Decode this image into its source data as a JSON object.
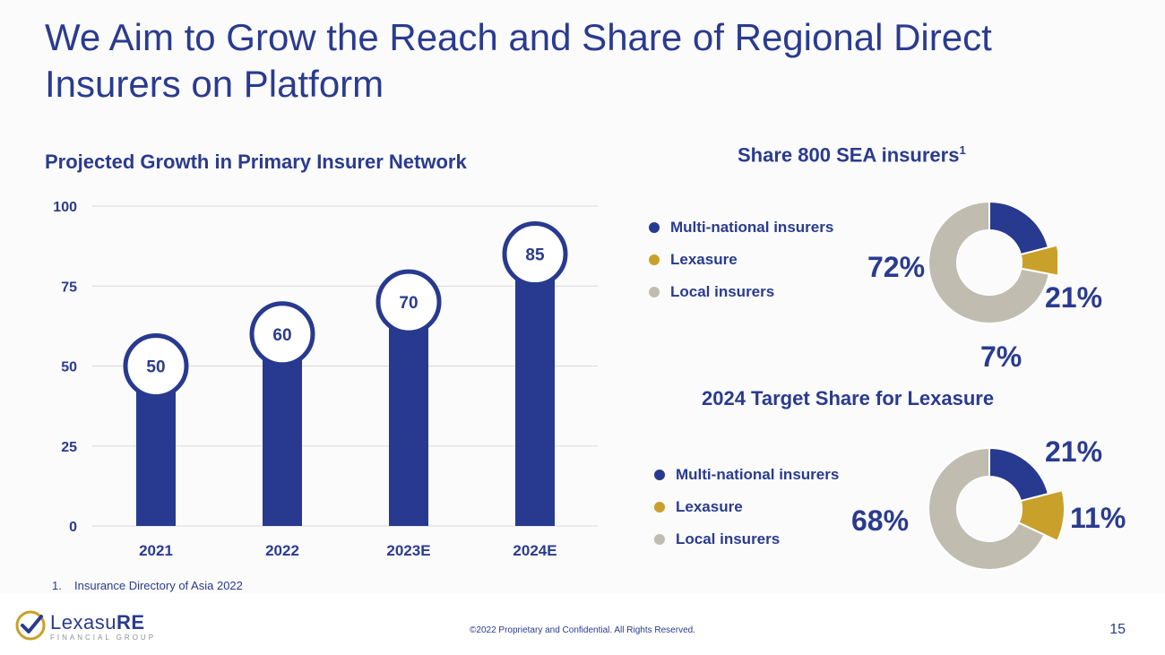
{
  "title": "We Aim to Grow the Reach and Share of Regional Direct Insurers on Platform",
  "bar_section": {
    "title": "Projected Growth in Primary Insurer Network"
  },
  "donut1": {
    "title_main": "Share 800 SEA insurers",
    "title_sup": "1",
    "legend": [
      "Multi-national insurers",
      "Lexasure",
      "Local insurers"
    ],
    "labels": [
      "21%",
      "7%",
      "72%"
    ]
  },
  "donut2": {
    "title": "2024 Target Share for Lexasure",
    "legend": [
      "Multi-national insurers",
      "Lexasure",
      "Local insurers"
    ],
    "labels": [
      "21%",
      "11%",
      "68%"
    ]
  },
  "footnote": {
    "number": "1.",
    "text": "Insurance Directory of Asia 2022"
  },
  "footer": {
    "copyright": "©2022 Proprietary and Confidential. All Rights Reserved.",
    "page_number": "15",
    "logo_main": "Lexasu",
    "logo_bold": "RE",
    "logo_sub": "FINANCIAL GROUP"
  },
  "colors": {
    "navy": "#283a8f",
    "gold": "#c9a02a",
    "grey": "#c0bdb0",
    "grid": "#d9d9d9"
  },
  "chart_data": [
    {
      "type": "bar",
      "title": "Projected Growth in Primary Insurer Network",
      "categories": [
        "2021",
        "2022",
        "2023E",
        "2024E"
      ],
      "values": [
        50,
        60,
        70,
        85
      ],
      "data_labels": [
        "50",
        "60",
        "70",
        "85"
      ],
      "ylim": [
        0,
        100
      ],
      "yticks": [
        "0",
        "25",
        "50",
        "75",
        "100"
      ],
      "grid": true
    },
    {
      "type": "pie",
      "title": "Share 800 SEA insurers",
      "categories": [
        "Multi-national insurers",
        "Lexasure",
        "Local insurers"
      ],
      "values": [
        21,
        7,
        72
      ],
      "legend_position": "left"
    },
    {
      "type": "pie",
      "title": "2024 Target Share for Lexasure",
      "categories": [
        "Multi-national insurers",
        "Lexasure",
        "Local insurers"
      ],
      "values": [
        21,
        11,
        68
      ],
      "legend_position": "left"
    }
  ]
}
